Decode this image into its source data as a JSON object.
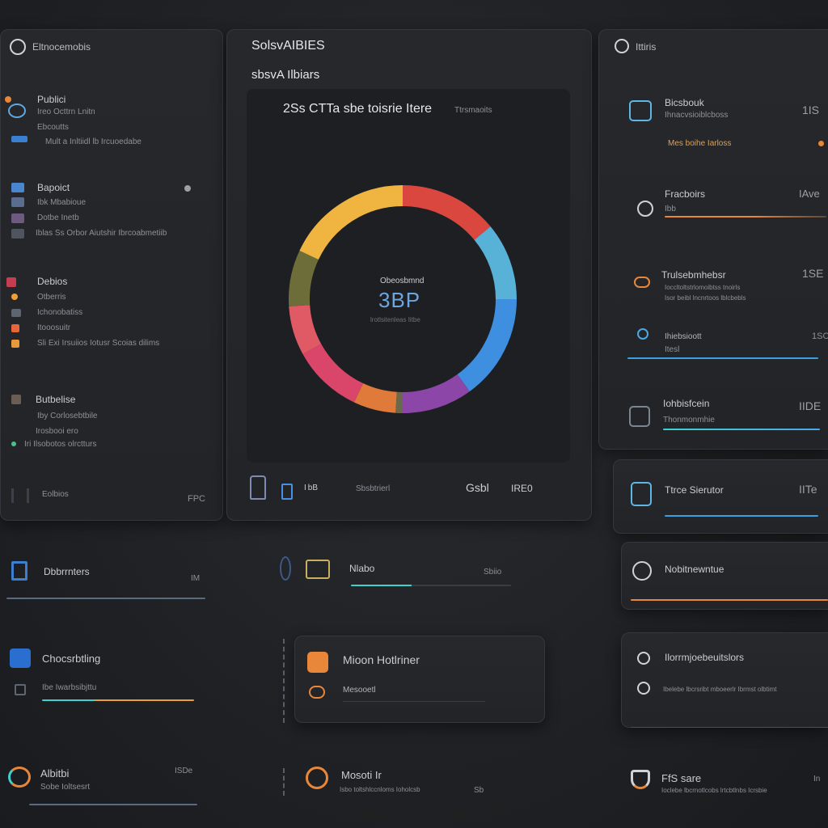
{
  "left_panel": {
    "header": "Eltnocemobis",
    "sections": [
      {
        "rows": [
          "Publici",
          "Ireo Octtrn Lnitn",
          "Ebcoutts",
          "Mult a Inltiidl lb Ircuoedabe"
        ]
      },
      {
        "rows": [
          "Bapoict",
          "Ibk Mbabioue",
          "Dotbe Inetb",
          "Iblas Ss Orbor Aiutshir Ibrcoabmetiib"
        ]
      },
      {
        "rows": [
          "Debios",
          "Otberris",
          "Ichonobatiss",
          "Itooosuitr",
          "Sli Exi Irsuiios Iotusr Scoias dilims"
        ]
      },
      {
        "rows": [
          "Butbelise",
          "Iby Corlosebtbile",
          "Irosbooi ero",
          "Iri Ilsobotos olrctturs"
        ]
      }
    ],
    "footer_left": "Eolbios",
    "footer_right": "FPC"
  },
  "center_panel": {
    "title": "SolsvAIBIES",
    "subtitle": "sbsvA Ilbiars",
    "chart_heading": "2Ss CTTa sbe toisrie Itere",
    "chart_heading_dim": "Ttrsmaoits",
    "donut_label": "Obeosbmnd",
    "donut_value": "3BP",
    "donut_caption": "lrotlsitenleas Iitbe",
    "footer_a": "I bB",
    "footer_b": "Sbsbtrierl",
    "footer_c": "Gsbl",
    "footer_d": "IRE0"
  },
  "right_panel": {
    "header": "Ittiris",
    "items": [
      {
        "title": "Bicsbouk",
        "sub": "Ihnacvsioiblcboss",
        "meta": "Mes boihe Iarloss",
        "value": "1IS"
      },
      {
        "title": "Fracboirs",
        "sub": "Ibb",
        "meta": "",
        "value": "IAve"
      },
      {
        "title": "Trulsebmhebsr",
        "sub": "Ioccltoltstrlomoibtss tnoirls",
        "meta": "Isor beibl lncnrtoos lblcbebls",
        "value": "1SE"
      },
      {
        "title": "Ihiebsioott",
        "sub": "Itesl",
        "meta": "",
        "value": "1SC"
      },
      {
        "title": "Iohbisfcein",
        "sub": "Thonmonmhie",
        "meta": "",
        "value": "IIDE"
      },
      {
        "title": "Ttrce Sierutor",
        "sub": "",
        "meta": "",
        "value": "IITe"
      },
      {
        "title": "Nobitnewntue",
        "sub": "",
        "meta": "",
        "value": ""
      },
      {
        "title": "Ilorrmjoebeuitslors",
        "sub": "Ibelebe lbcrsribt mboeerlr Ibrmst olbtimt",
        "meta": "",
        "value": ""
      }
    ]
  },
  "bottom": {
    "b1_title": "Dbbrrnters",
    "b1_value": "IM",
    "b2_title": "Nlabo",
    "b2_value": "Sbiio",
    "b3_title": "Chocsrbtling",
    "b3_sub": "Ibe Iwarbsibjttu",
    "b4_title": "Mioon Hotlriner",
    "b4_sub": "Mesooetl",
    "b5_title": "Albitbi",
    "b5_sub": "Sobe Ioltsesrt",
    "b5_value": "ISDe",
    "b6_title": "Mosoti Ir",
    "b6_sub": "Isbo toltshlccnloms Ioholcsb",
    "b6_value": "Sb",
    "b7_title": "FfS sare",
    "b7_sub": "Ioclebe lbcrnotlcobs lrtcbtlnbs Icrsbie",
    "b7_value": "In"
  },
  "donut": {
    "segments": [
      {
        "color": "#d9473f",
        "value": 14
      },
      {
        "color": "#58b2d8",
        "value": 11
      },
      {
        "color": "#3f8fe0",
        "value": 15
      },
      {
        "color": "#8b46a8",
        "value": 10
      },
      {
        "color": "#6a6a4a",
        "value": 1
      },
      {
        "color": "#e07a3b",
        "value": 6
      },
      {
        "color": "#d9466a",
        "value": 10
      },
      {
        "color": "#e05a66",
        "value": 7
      },
      {
        "color": "#6d6d3a",
        "value": 8
      },
      {
        "color": "#f0b541",
        "value": 18
      }
    ]
  },
  "colors": {
    "accent_blue": "#4aa8e8",
    "accent_cyan": "#3fd0d0",
    "accent_orange": "#e8873a"
  }
}
